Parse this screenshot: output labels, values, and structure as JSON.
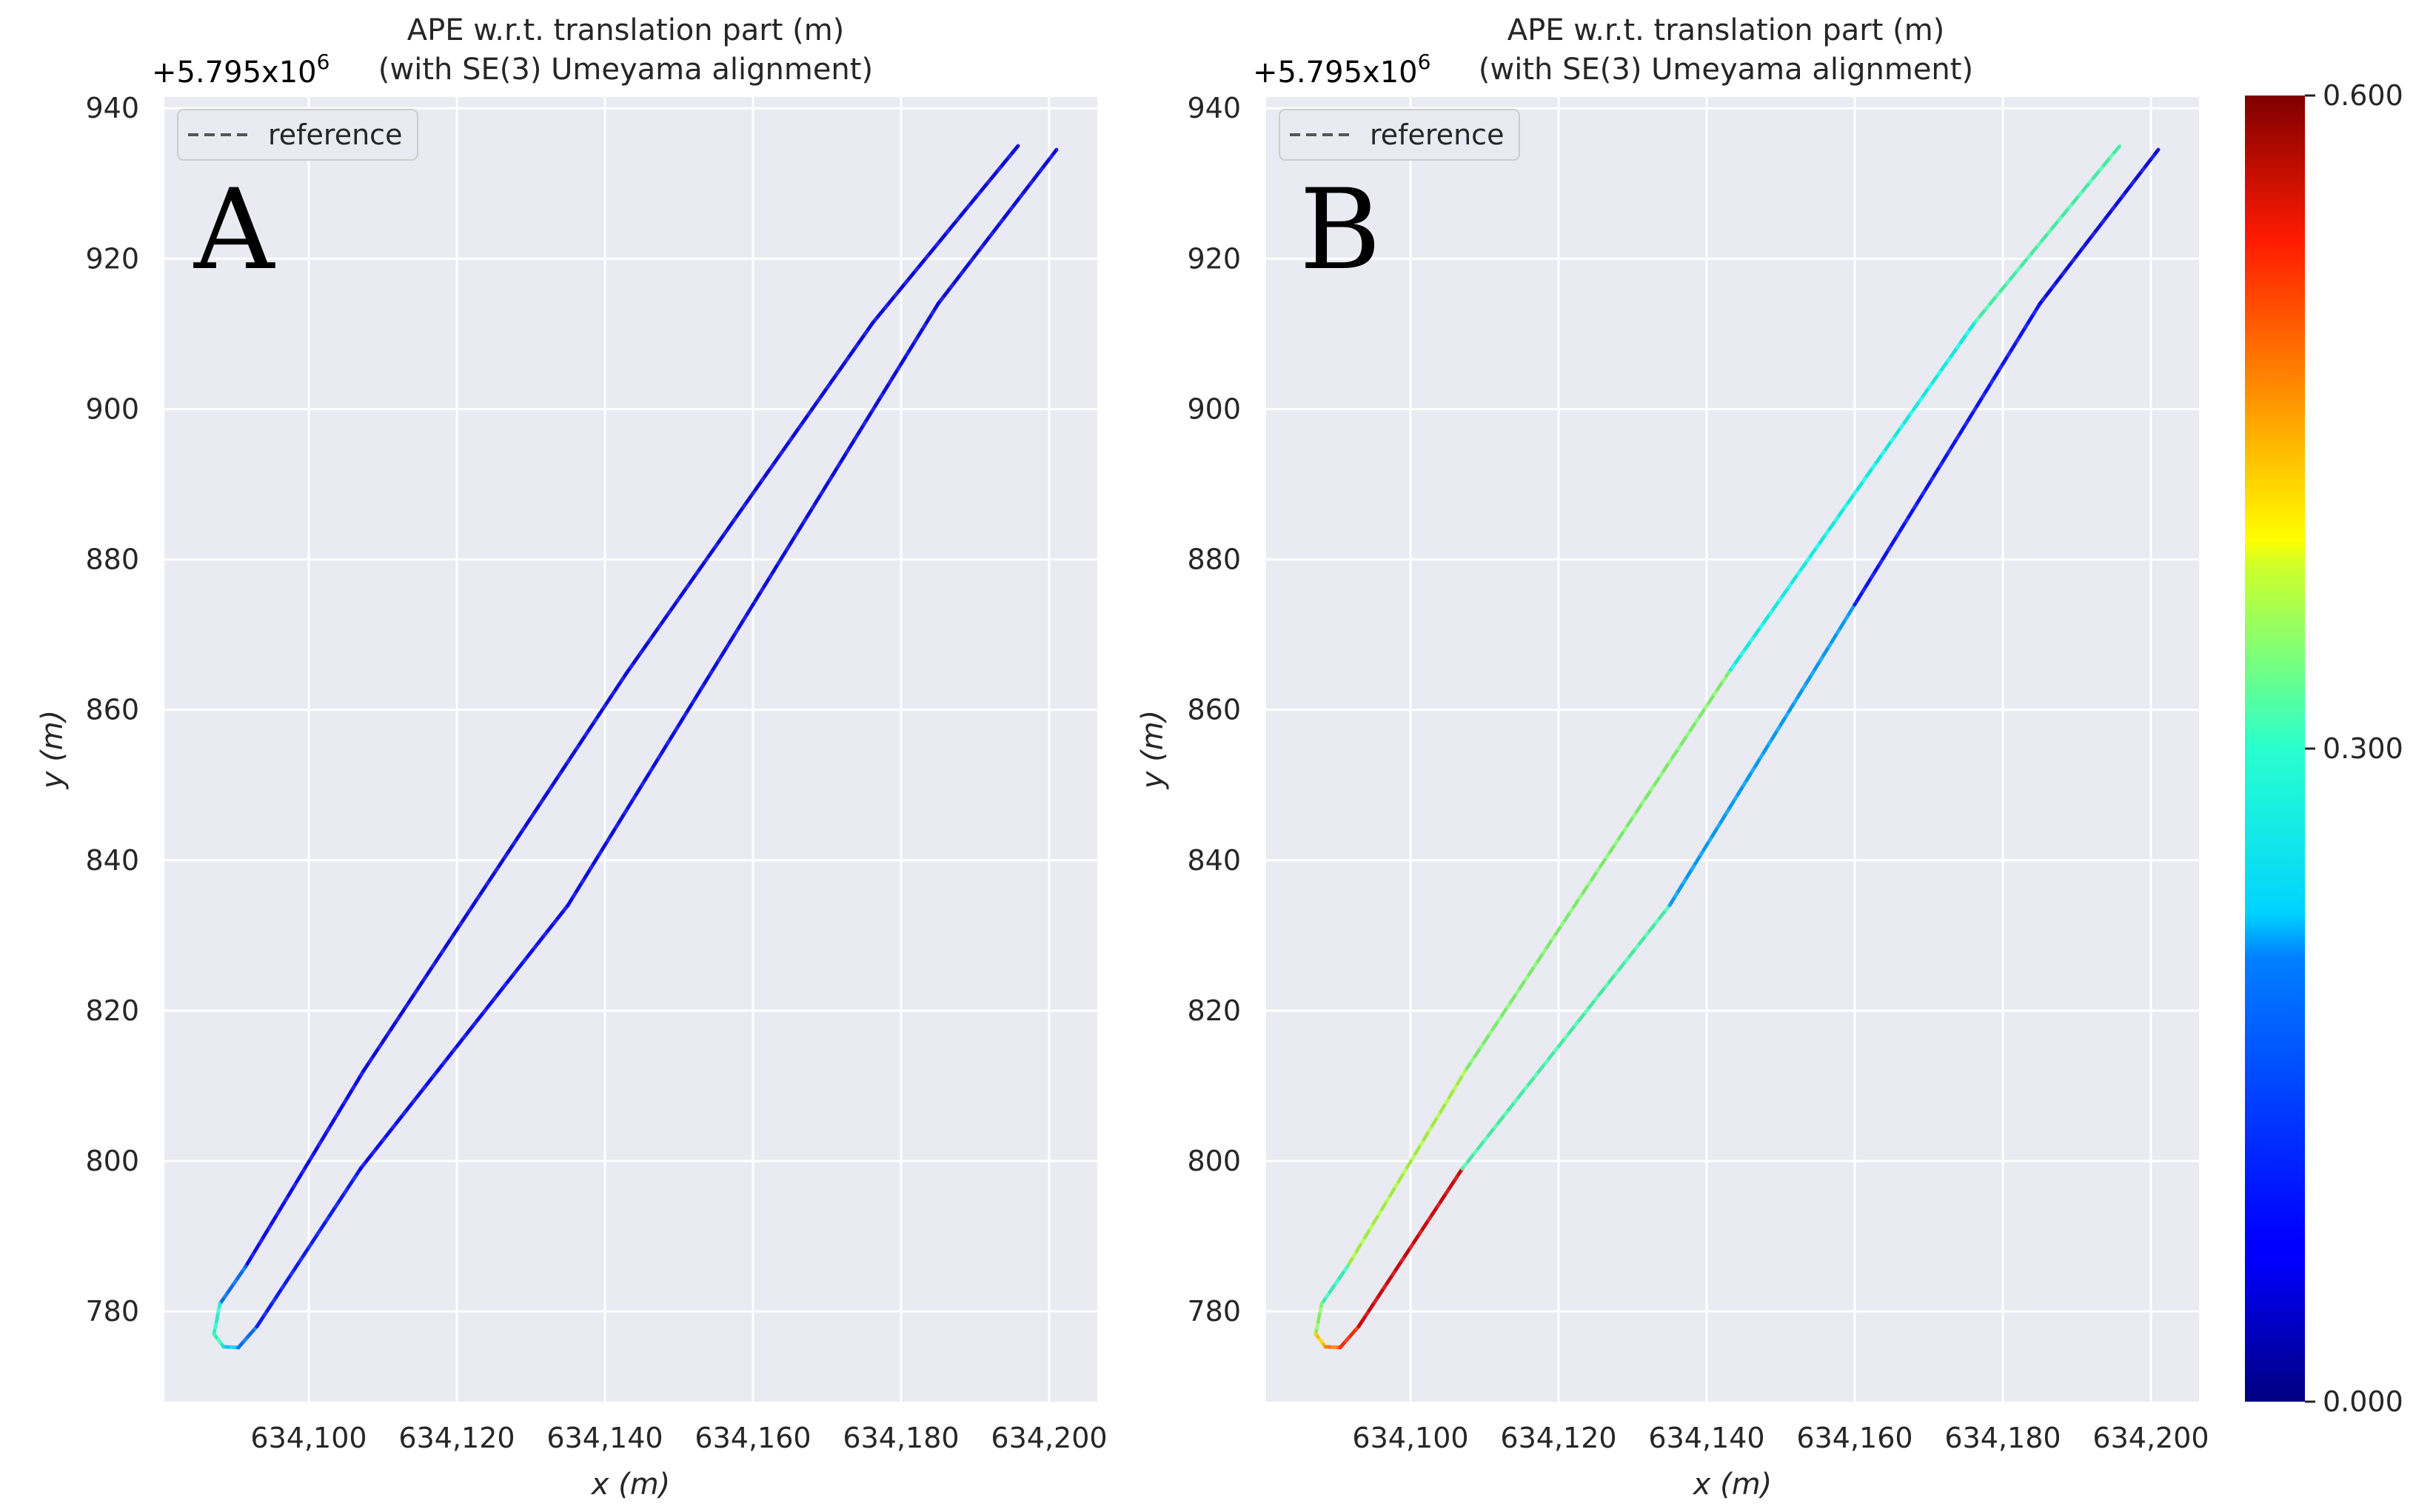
{
  "chart_data": [
    {
      "type": "line",
      "panel": "A",
      "title": "APE w.r.t. translation part (m)",
      "subtitle": "(with SE(3) Umeyama alignment)",
      "offset_label": "+5.795x10",
      "offset_exp": "6",
      "xlabel": "x (m)",
      "ylabel": "y (m)",
      "xlim": [
        634080.5,
        634206.5
      ],
      "ylim": [
        768,
        941.5
      ],
      "xticks": [
        634100,
        634120,
        634140,
        634160,
        634180,
        634200
      ],
      "xtick_labels": [
        "634,100",
        "634,120",
        "634,140",
        "634,160",
        "634,180",
        "634,200"
      ],
      "yticks": [
        780,
        800,
        820,
        840,
        860,
        880,
        900,
        920,
        940
      ],
      "ytick_labels": [
        "780",
        "800",
        "820",
        "840",
        "860",
        "880",
        "900",
        "920",
        "940"
      ],
      "grid": true,
      "legend": {
        "position": "top-left",
        "entries": [
          "reference"
        ]
      },
      "series": [
        {
          "name": "reference",
          "style": "dashed",
          "color": "#555555",
          "x": [
            634195.8,
            634176.2,
            634143.0,
            634107.4,
            634091.5,
            634088.0,
            634087.2,
            634088.5,
            634090.5,
            634093.0,
            634107.0,
            634135.0,
            634160.0,
            634185.0,
            634201.0
          ],
          "y": [
            935.0,
            911.5,
            865.0,
            812.0,
            786.0,
            781.0,
            777.0,
            775.3,
            775.2,
            778.0,
            799.0,
            834.0,
            874.0,
            914.0,
            934.5
          ]
        },
        {
          "name": "APE",
          "colormap": "jet",
          "x": [
            634195.8,
            634176.2,
            634143.0,
            634107.4,
            634091.5,
            634088.0,
            634087.2,
            634088.5,
            634090.5,
            634093.0,
            634107.0,
            634135.0,
            634160.0,
            634185.0,
            634201.0
          ],
          "y": [
            935.0,
            911.5,
            865.0,
            812.0,
            786.0,
            781.0,
            777.0,
            775.3,
            775.2,
            778.0,
            799.0,
            834.0,
            874.0,
            914.0,
            934.5
          ],
          "ape": [
            0.06,
            0.06,
            0.06,
            0.06,
            0.08,
            0.2,
            0.3,
            0.22,
            0.18,
            0.1,
            0.07,
            0.07,
            0.06,
            0.06,
            0.06
          ]
        }
      ]
    },
    {
      "type": "line",
      "panel": "B",
      "title": "APE w.r.t. translation part (m)",
      "subtitle": "(with SE(3) Umeyama alignment)",
      "offset_label": "+5.795x10",
      "offset_exp": "6",
      "xlabel": "x (m)",
      "ylabel": "y (m)",
      "xlim": [
        634080.5,
        634206.5
      ],
      "ylim": [
        768,
        941.5
      ],
      "xticks": [
        634100,
        634120,
        634140,
        634160,
        634180,
        634200
      ],
      "xtick_labels": [
        "634,100",
        "634,120",
        "634,140",
        "634,160",
        "634,180",
        "634,200"
      ],
      "yticks": [
        780,
        800,
        820,
        840,
        860,
        880,
        900,
        920,
        940
      ],
      "ytick_labels": [
        "780",
        "800",
        "820",
        "840",
        "860",
        "880",
        "900",
        "920",
        "940"
      ],
      "grid": true,
      "legend": {
        "position": "top-left",
        "entries": [
          "reference"
        ]
      },
      "series": [
        {
          "name": "reference",
          "style": "dashed",
          "color": "#555555",
          "x": [
            634195.8,
            634176.2,
            634143.0,
            634107.4,
            634091.5,
            634088.0,
            634087.2,
            634088.5,
            634090.5,
            634093.0,
            634107.0,
            634135.0,
            634160.0,
            634185.0,
            634201.0
          ],
          "y": [
            935.0,
            911.5,
            865.0,
            812.0,
            786.0,
            781.0,
            777.0,
            775.3,
            775.2,
            778.0,
            799.0,
            834.0,
            874.0,
            914.0,
            934.5
          ]
        },
        {
          "name": "APE",
          "colormap": "jet",
          "x": [
            634195.8,
            634176.2,
            634143.0,
            634107.4,
            634091.5,
            634088.0,
            634087.2,
            634088.5,
            634090.5,
            634093.0,
            634107.0,
            634107.0,
            634135.0,
            634160.0,
            634185.0,
            634201.0
          ],
          "y": [
            935.0,
            911.5,
            865.0,
            812.0,
            786.0,
            781.0,
            777.0,
            775.3,
            775.2,
            778.0,
            799.0,
            799.0,
            834.0,
            874.0,
            914.0,
            934.5
          ],
          "ape": [
            0.3,
            0.24,
            0.23,
            0.38,
            0.28,
            0.24,
            0.38,
            0.42,
            0.48,
            0.52,
            0.58,
            0.3,
            0.24,
            0.1,
            0.06,
            0.06
          ]
        }
      ]
    }
  ],
  "colorbar": {
    "colormap": "jet",
    "min": 0.0,
    "max": 0.6,
    "ticks": [
      0.0,
      0.3,
      0.6
    ],
    "tick_labels": [
      "0.000",
      "0.300",
      "0.600"
    ]
  },
  "colors": {
    "axes_bg": "#eaeaf2",
    "grid": "#ffffff",
    "text": "#262626",
    "reference": "#555555"
  }
}
